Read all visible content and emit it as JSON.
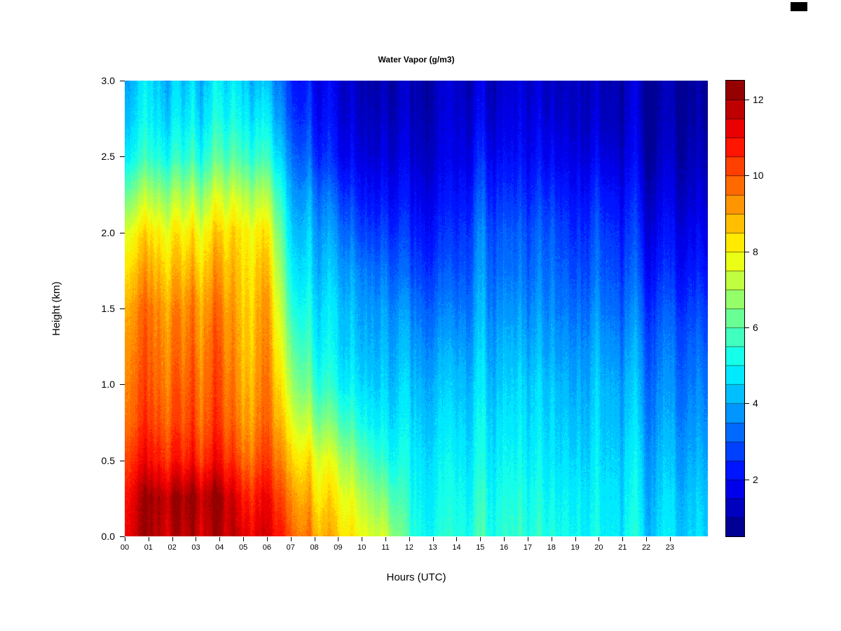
{
  "figure": {
    "background": "#ffffff"
  },
  "chart_data": {
    "type": "heatmap",
    "title": "Water Vapor (g/m3)",
    "xlabel": "Hours (UTC)",
    "ylabel": "Height (km)",
    "x_ticks": [
      "00",
      "01",
      "02",
      "03",
      "04",
      "05",
      "06",
      "07",
      "08",
      "09",
      "10",
      "11",
      "12",
      "13",
      "14",
      "15",
      "16",
      "17",
      "18",
      "19",
      "20",
      "21",
      "22",
      "23"
    ],
    "y_ticks": [
      "0.0",
      "0.5",
      "1.0",
      "1.5",
      "2.0",
      "2.5",
      "3.0"
    ],
    "colorbar_ticks": [
      2,
      4,
      6,
      8,
      10,
      12
    ],
    "value_range": [
      0.5,
      12.5
    ],
    "value_step": 0.5,
    "x_range_hours": [
      0,
      24
    ],
    "y_range_km": [
      0,
      3
    ],
    "colormap": "jet",
    "legend_position": "right",
    "heights_km": [
      0,
      0.25,
      0.5,
      0.75,
      1.0,
      1.25,
      1.5,
      1.75,
      2.0,
      2.25,
      2.5,
      2.75,
      3.0
    ],
    "hours": [
      0,
      1,
      2,
      3,
      4,
      5,
      6,
      7,
      8,
      9,
      10,
      11,
      12,
      13,
      14,
      15,
      16,
      17,
      18,
      19,
      20,
      21,
      22,
      23
    ],
    "values": [
      [
        11.5,
        11.2,
        10.6,
        10.0,
        9.8,
        9.6,
        9.3,
        8.7,
        8.0,
        6.6,
        5.2,
        4.6,
        4.3
      ],
      [
        11.8,
        11.9,
        10.7,
        10.1,
        9.8,
        9.6,
        9.4,
        8.8,
        8.1,
        6.8,
        5.3,
        4.7,
        4.4
      ],
      [
        11.9,
        12.1,
        10.8,
        10.2,
        9.9,
        9.7,
        9.4,
        8.8,
        8.2,
        7.0,
        5.5,
        4.8,
        4.4
      ],
      [
        11.9,
        12.2,
        10.8,
        10.2,
        10.0,
        9.7,
        9.5,
        8.9,
        8.2,
        7.0,
        5.6,
        4.9,
        4.5
      ],
      [
        11.7,
        11.9,
        10.7,
        10.1,
        9.9,
        9.7,
        9.4,
        8.9,
        8.3,
        7.2,
        5.8,
        5.0,
        4.6
      ],
      [
        11.6,
        11.0,
        10.0,
        9.4,
        9.1,
        8.9,
        8.8,
        8.6,
        8.4,
        7.4,
        6.0,
        5.2,
        4.7
      ],
      [
        11.4,
        11.0,
        10.3,
        9.8,
        9.6,
        9.4,
        9.2,
        8.8,
        8.2,
        7.0,
        5.6,
        4.8,
        4.2
      ],
      [
        10.2,
        9.6,
        8.8,
        8.0,
        7.2,
        6.5,
        5.8,
        5.2,
        4.7,
        4.2,
        3.6,
        3.0,
        2.6
      ],
      [
        9.2,
        8.6,
        8.0,
        6.8,
        5.8,
        5.2,
        4.8,
        4.4,
        4.1,
        3.6,
        2.8,
        2.3,
        2.0
      ],
      [
        8.7,
        8.2,
        7.4,
        6.2,
        5.2,
        4.8,
        4.6,
        4.2,
        3.7,
        3.0,
        2.2,
        1.9,
        1.7
      ],
      [
        8.2,
        7.6,
        6.6,
        5.6,
        5.0,
        4.6,
        4.3,
        3.9,
        3.2,
        2.6,
        2.0,
        1.7,
        1.5
      ],
      [
        7.6,
        6.6,
        5.6,
        5.0,
        4.6,
        4.3,
        4.0,
        3.5,
        2.9,
        2.3,
        1.8,
        1.5,
        1.3
      ],
      [
        5.6,
        5.3,
        5.0,
        4.7,
        4.4,
        4.0,
        3.6,
        3.0,
        2.5,
        2.0,
        1.6,
        1.3,
        1.2
      ],
      [
        5.2,
        5.0,
        4.8,
        4.5,
        4.2,
        3.8,
        3.3,
        2.8,
        2.3,
        1.9,
        1.5,
        1.3,
        1.2
      ],
      [
        5.1,
        4.9,
        4.6,
        4.3,
        4.0,
        3.6,
        3.1,
        2.6,
        2.2,
        1.8,
        1.4,
        1.2,
        1.1
      ],
      [
        5.6,
        5.3,
        5.0,
        4.8,
        4.5,
        4.2,
        3.9,
        3.6,
        3.3,
        2.8,
        2.2,
        1.7,
        1.4
      ],
      [
        5.4,
        5.2,
        4.9,
        4.6,
        4.3,
        4.0,
        3.6,
        3.2,
        2.9,
        2.4,
        1.9,
        1.5,
        1.3
      ],
      [
        5.2,
        5.0,
        4.7,
        4.4,
        4.2,
        3.8,
        3.4,
        3.0,
        2.7,
        2.2,
        1.7,
        1.4,
        1.2
      ],
      [
        5.4,
        5.1,
        4.8,
        4.6,
        4.4,
        4.0,
        3.7,
        3.4,
        3.1,
        2.6,
        2.0,
        1.6,
        1.3
      ],
      [
        4.9,
        4.7,
        4.4,
        4.1,
        3.8,
        3.5,
        3.1,
        2.7,
        2.3,
        1.9,
        1.5,
        1.2,
        1.1
      ],
      [
        5.1,
        4.9,
        4.7,
        4.5,
        4.3,
        4.0,
        3.6,
        3.2,
        2.9,
        2.4,
        1.8,
        1.4,
        1.2
      ],
      [
        4.9,
        4.7,
        4.5,
        4.2,
        4.0,
        3.6,
        3.2,
        2.8,
        2.4,
        2.0,
        1.5,
        1.2,
        1.1
      ],
      [
        4.7,
        4.5,
        4.3,
        4.0,
        3.7,
        3.4,
        3.0,
        2.5,
        2.1,
        1.7,
        1.3,
        1.1,
        1.0
      ],
      [
        4.6,
        4.4,
        4.1,
        3.8,
        3.5,
        3.2,
        2.8,
        2.3,
        1.9,
        1.5,
        1.2,
        1.0,
        0.9
      ]
    ]
  }
}
